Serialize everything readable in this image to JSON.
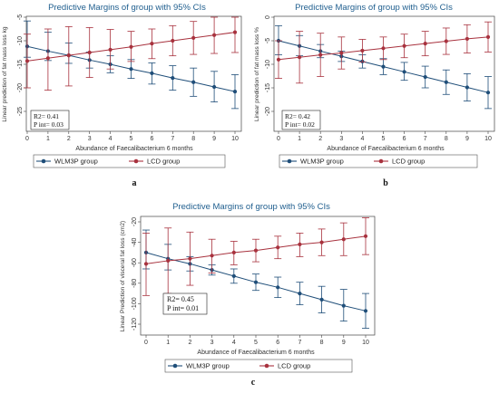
{
  "colors": {
    "wlm": "#1f4e79",
    "lcd": "#a8323e",
    "title": "#1f5e8e",
    "axis": "#444444"
  },
  "chart_data": [
    {
      "type": "line",
      "panel_label": "a",
      "title": "Predictive Margins of group with 95% CIs",
      "xlabel": "Abundance of Faecalibacterium 6 months",
      "ylabel": "Linear prediction of fat mass loss kg",
      "x": [
        0,
        1,
        2,
        3,
        4,
        5,
        6,
        7,
        8,
        9,
        10
      ],
      "xlim": [
        0,
        10
      ],
      "ylim": [
        -25,
        -5
      ],
      "yticks": [
        -5,
        -10,
        -15,
        -20,
        -25
      ],
      "series": [
        {
          "name": "WLM3P group",
          "values": [
            -11.2,
            -12.2,
            -13.1,
            -14.1,
            -15.0,
            -16.0,
            -16.9,
            -17.9,
            -18.8,
            -19.8,
            -20.8
          ],
          "lower": [
            -13.5,
            -14.2,
            -14.8,
            -15.8,
            -16.8,
            -18.0,
            -19.2,
            -20.5,
            -21.8,
            -23.0,
            -24.4
          ],
          "upper": [
            -5.8,
            -8.2,
            -10.5,
            -12.4,
            -13.2,
            -14.0,
            -14.7,
            -15.3,
            -15.8,
            -16.5,
            -17.2
          ]
        },
        {
          "name": "LCD group",
          "values": [
            -14.3,
            -13.7,
            -13.1,
            -12.5,
            -11.9,
            -11.3,
            -10.6,
            -10.0,
            -9.4,
            -8.8,
            -8.2
          ],
          "lower": [
            -20.0,
            -20.5,
            -19.6,
            -17.8,
            -16.0,
            -14.4,
            -13.8,
            -13.2,
            -12.9,
            -12.7,
            -12.5
          ],
          "upper": [
            -8.6,
            -7.5,
            -7.0,
            -7.2,
            -7.6,
            -8.0,
            -7.5,
            -6.8,
            -5.9,
            -4.9,
            -4.0
          ]
        }
      ],
      "annotation": [
        "R2= 0.41",
        "P int= 0.03"
      ],
      "legend": [
        "WLM3P group",
        "LCD group"
      ]
    },
    {
      "type": "line",
      "panel_label": "b",
      "title": "Predictive Margins of group with 95% CIs",
      "xlabel": "Abundance of Faecalibacterium 6 months",
      "ylabel": "Linear prediction of fat mass loss %",
      "x": [
        0,
        1,
        2,
        3,
        4,
        5,
        6,
        7,
        8,
        9,
        10
      ],
      "xlim": [
        0,
        10
      ],
      "ylim": [
        -20,
        0
      ],
      "yticks": [
        0,
        -5,
        -10,
        -15,
        -20
      ],
      "series": [
        {
          "name": "WLM3P group",
          "values": [
            -5.0,
            -6.1,
            -7.2,
            -8.3,
            -9.4,
            -10.5,
            -11.6,
            -12.7,
            -13.8,
            -14.9,
            -16.0
          ],
          "lower": [
            -8.0,
            -8.2,
            -8.6,
            -9.4,
            -10.8,
            -12.2,
            -13.4,
            -15.0,
            -16.4,
            -17.8,
            -19.4
          ],
          "upper": [
            -1.8,
            -3.9,
            -5.8,
            -7.2,
            -8.0,
            -8.8,
            -9.6,
            -10.4,
            -11.2,
            -12.0,
            -12.6
          ]
        },
        {
          "name": "LCD group",
          "values": [
            -9.0,
            -8.5,
            -8.0,
            -7.6,
            -7.1,
            -6.6,
            -6.1,
            -5.6,
            -5.1,
            -4.6,
            -4.2
          ],
          "lower": [
            -13.0,
            -14.0,
            -12.6,
            -11.0,
            -9.5,
            -9.0,
            -8.6,
            -8.2,
            -7.9,
            -7.6,
            -7.4
          ],
          "upper": [
            -5.0,
            -3.0,
            -3.4,
            -4.2,
            -4.7,
            -4.2,
            -3.6,
            -3.0,
            -2.3,
            -1.6,
            -1.0
          ]
        }
      ],
      "annotation": [
        "R2= 0.42",
        "P int= 0.02"
      ],
      "legend": [
        "WLM3P group",
        "LCD group"
      ]
    },
    {
      "type": "line",
      "panel_label": "c",
      "title": "Predictive Margins of group with 95% CIs",
      "xlabel": "Abundance of Faecalibacterium 6 months",
      "ylabel": "Linear Prediction of visceral fat loss (cm2)",
      "x": [
        0,
        1,
        2,
        3,
        4,
        5,
        6,
        7,
        8,
        9,
        10
      ],
      "xlim": [
        0,
        10
      ],
      "ylim": [
        -120,
        -20
      ],
      "yticks": [
        -20,
        -40,
        -60,
        -80,
        -100,
        -120
      ],
      "series": [
        {
          "name": "WLM3P group",
          "values": [
            -50,
            -56,
            -61,
            -67,
            -73,
            -79,
            -84,
            -90,
            -96,
            -102,
            -107
          ],
          "lower": [
            -66,
            -67,
            -68,
            -72,
            -80,
            -87,
            -94,
            -101,
            -109,
            -117,
            -124
          ],
          "upper": [
            -28,
            -42,
            -54,
            -62,
            -66,
            -71,
            -74,
            -79,
            -83,
            -86,
            -90
          ]
        },
        {
          "name": "LCD group",
          "values": [
            -61,
            -58,
            -56,
            -53,
            -50,
            -48,
            -45,
            -42,
            -40,
            -37,
            -34
          ],
          "lower": [
            -92,
            -90,
            -82,
            -70,
            -62,
            -59,
            -56,
            -54,
            -53,
            -53,
            -52
          ],
          "upper": [
            -31,
            -26,
            -30,
            -37,
            -39,
            -37,
            -34,
            -31,
            -27,
            -21,
            -16
          ]
        }
      ],
      "annotation": [
        "R2= 0.45",
        "P int= 0.01"
      ],
      "legend": [
        "WLM3P group",
        "LCD group"
      ]
    }
  ]
}
